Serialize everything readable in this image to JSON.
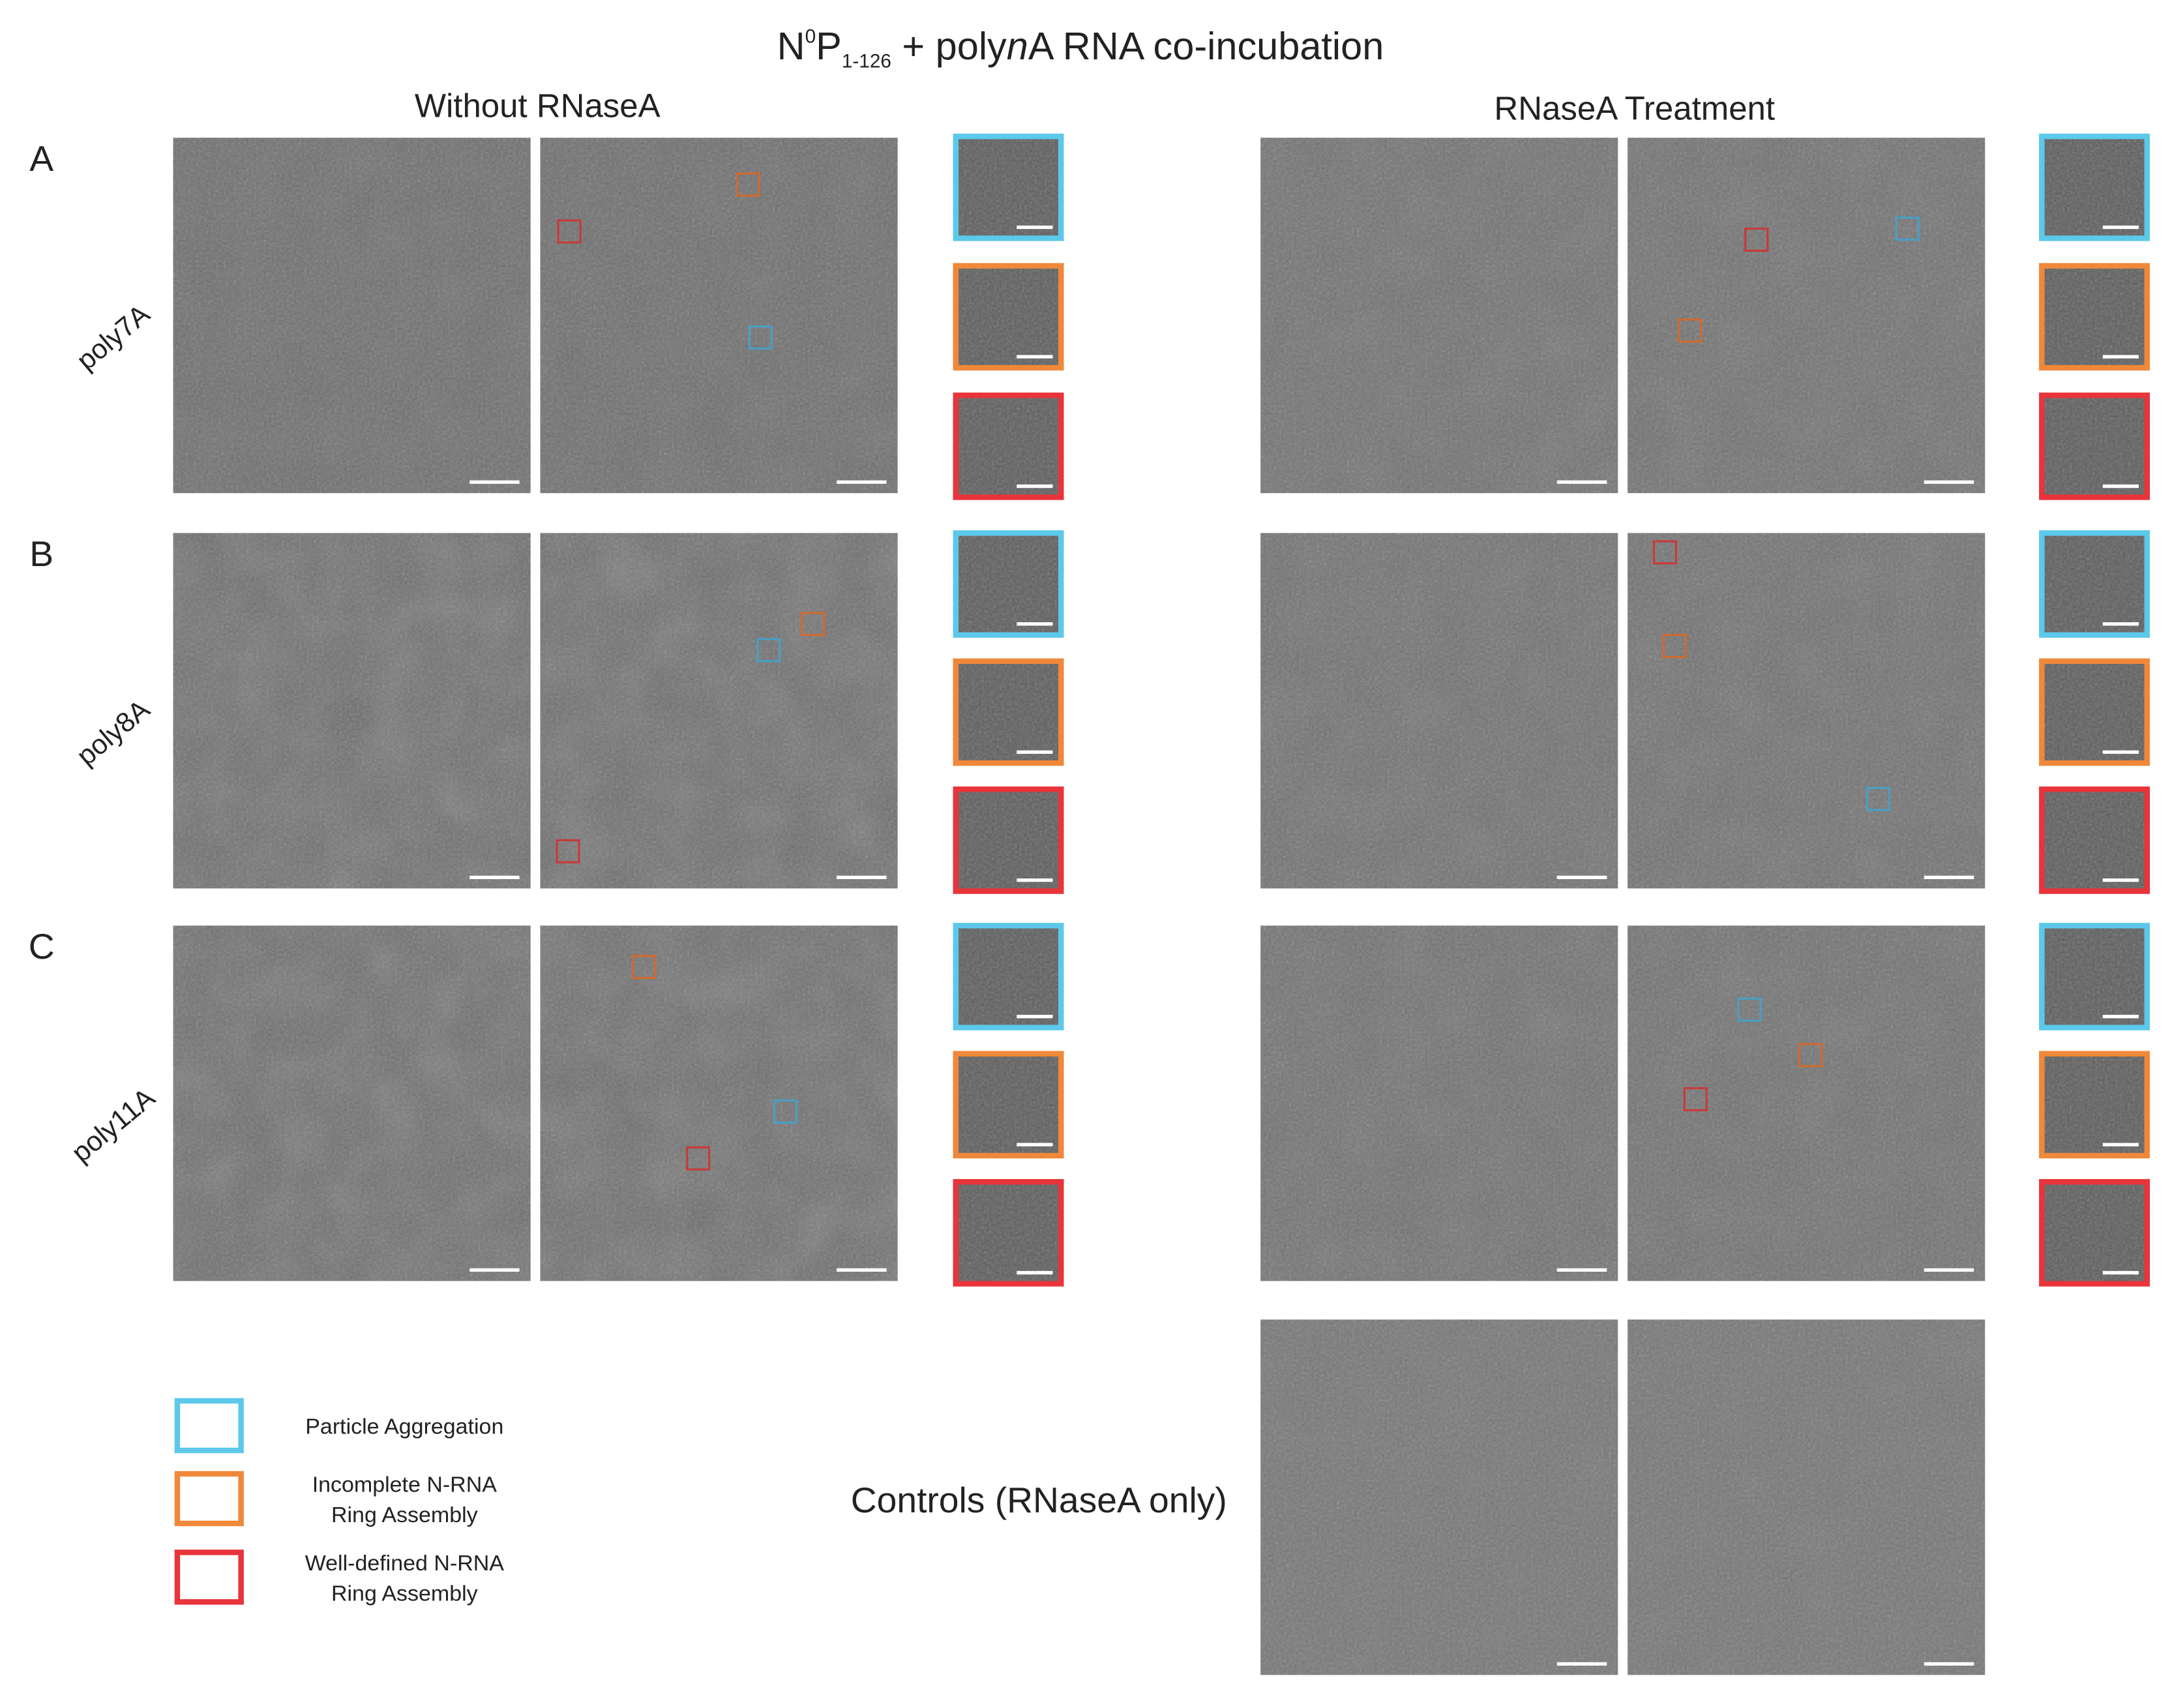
{
  "title": {
    "parts": [
      "N",
      "0",
      "P",
      "1-126",
      " + poly",
      "n",
      "A RNA co-incubation"
    ]
  },
  "columns": [
    "Without RNaseA",
    "RNaseA Treatment"
  ],
  "rows": [
    {
      "letter": "A",
      "label": "poly7A"
    },
    {
      "letter": "B",
      "label": "poly8A"
    },
    {
      "letter": "C",
      "label": "poly11A"
    }
  ],
  "controls": "Controls (RNaseA only)",
  "legend": [
    {
      "label": [
        "Particle Aggregation"
      ]
    },
    {
      "label": [
        "Incomplete N-RNA",
        "Ring Assembly"
      ]
    },
    {
      "label": [
        "Well-defined N-RNA",
        "Ring Assembly"
      ]
    }
  ]
}
